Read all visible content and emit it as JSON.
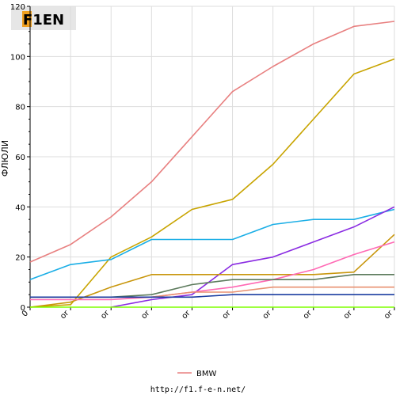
{
  "logo": {
    "text": "F1EN"
  },
  "footer": {
    "url": "http://f1.f-e-n.net/"
  },
  "chart_data": {
    "type": "line",
    "ylabel": "ФЛЮЛИ",
    "xlabel": "",
    "ylim": [
      0,
      120
    ],
    "yticks": [
      0,
      20,
      40,
      60,
      80,
      100,
      120
    ],
    "x_tick_labels": [
      "0",
      "or",
      "or",
      "or",
      "or",
      "or",
      "or",
      "or",
      "or",
      "or"
    ],
    "x": [
      0,
      1,
      2,
      3,
      4,
      5,
      6,
      7,
      8,
      9
    ],
    "grid": true,
    "legend": {
      "placement": "bottom",
      "entries": [
        {
          "name": "BMW",
          "color": "#e88080"
        }
      ]
    },
    "series": [
      {
        "name": "BMW",
        "color": "#e88080",
        "values": [
          18,
          25,
          36,
          50,
          68,
          86,
          96,
          105,
          112,
          114
        ]
      },
      {
        "color": "#c8a400",
        "values": [
          0,
          1,
          20,
          28,
          39,
          43,
          57,
          75,
          93,
          99
        ]
      },
      {
        "color": "#1aaee6",
        "values": [
          11,
          17,
          19,
          27,
          27,
          27,
          33,
          35,
          35,
          39
        ]
      },
      {
        "color": "#8a2be2",
        "values": [
          null,
          null,
          0,
          3,
          5,
          17,
          20,
          26,
          32,
          40
        ]
      },
      {
        "color": "#c8960c",
        "values": [
          0,
          2,
          8,
          13,
          13,
          13,
          13,
          13,
          14,
          29
        ]
      },
      {
        "color": "#ff69b4",
        "values": [
          3,
          3,
          3,
          4,
          6,
          8,
          11,
          15,
          21,
          26
        ]
      },
      {
        "color": "#5c7a5c",
        "values": [
          4,
          4,
          4,
          5,
          9,
          11,
          11,
          11,
          13,
          13
        ]
      },
      {
        "color": "#e89070",
        "values": [
          4,
          4,
          4,
          4,
          6,
          6,
          8,
          8,
          8,
          8
        ]
      },
      {
        "color": "#1a3ca0",
        "values": [
          4,
          4,
          4,
          4,
          4,
          5,
          5,
          5,
          5,
          5
        ]
      },
      {
        "color": "#7fff00",
        "values": [
          0,
          0,
          0,
          0,
          0,
          0,
          0,
          0,
          0,
          0
        ]
      }
    ]
  }
}
